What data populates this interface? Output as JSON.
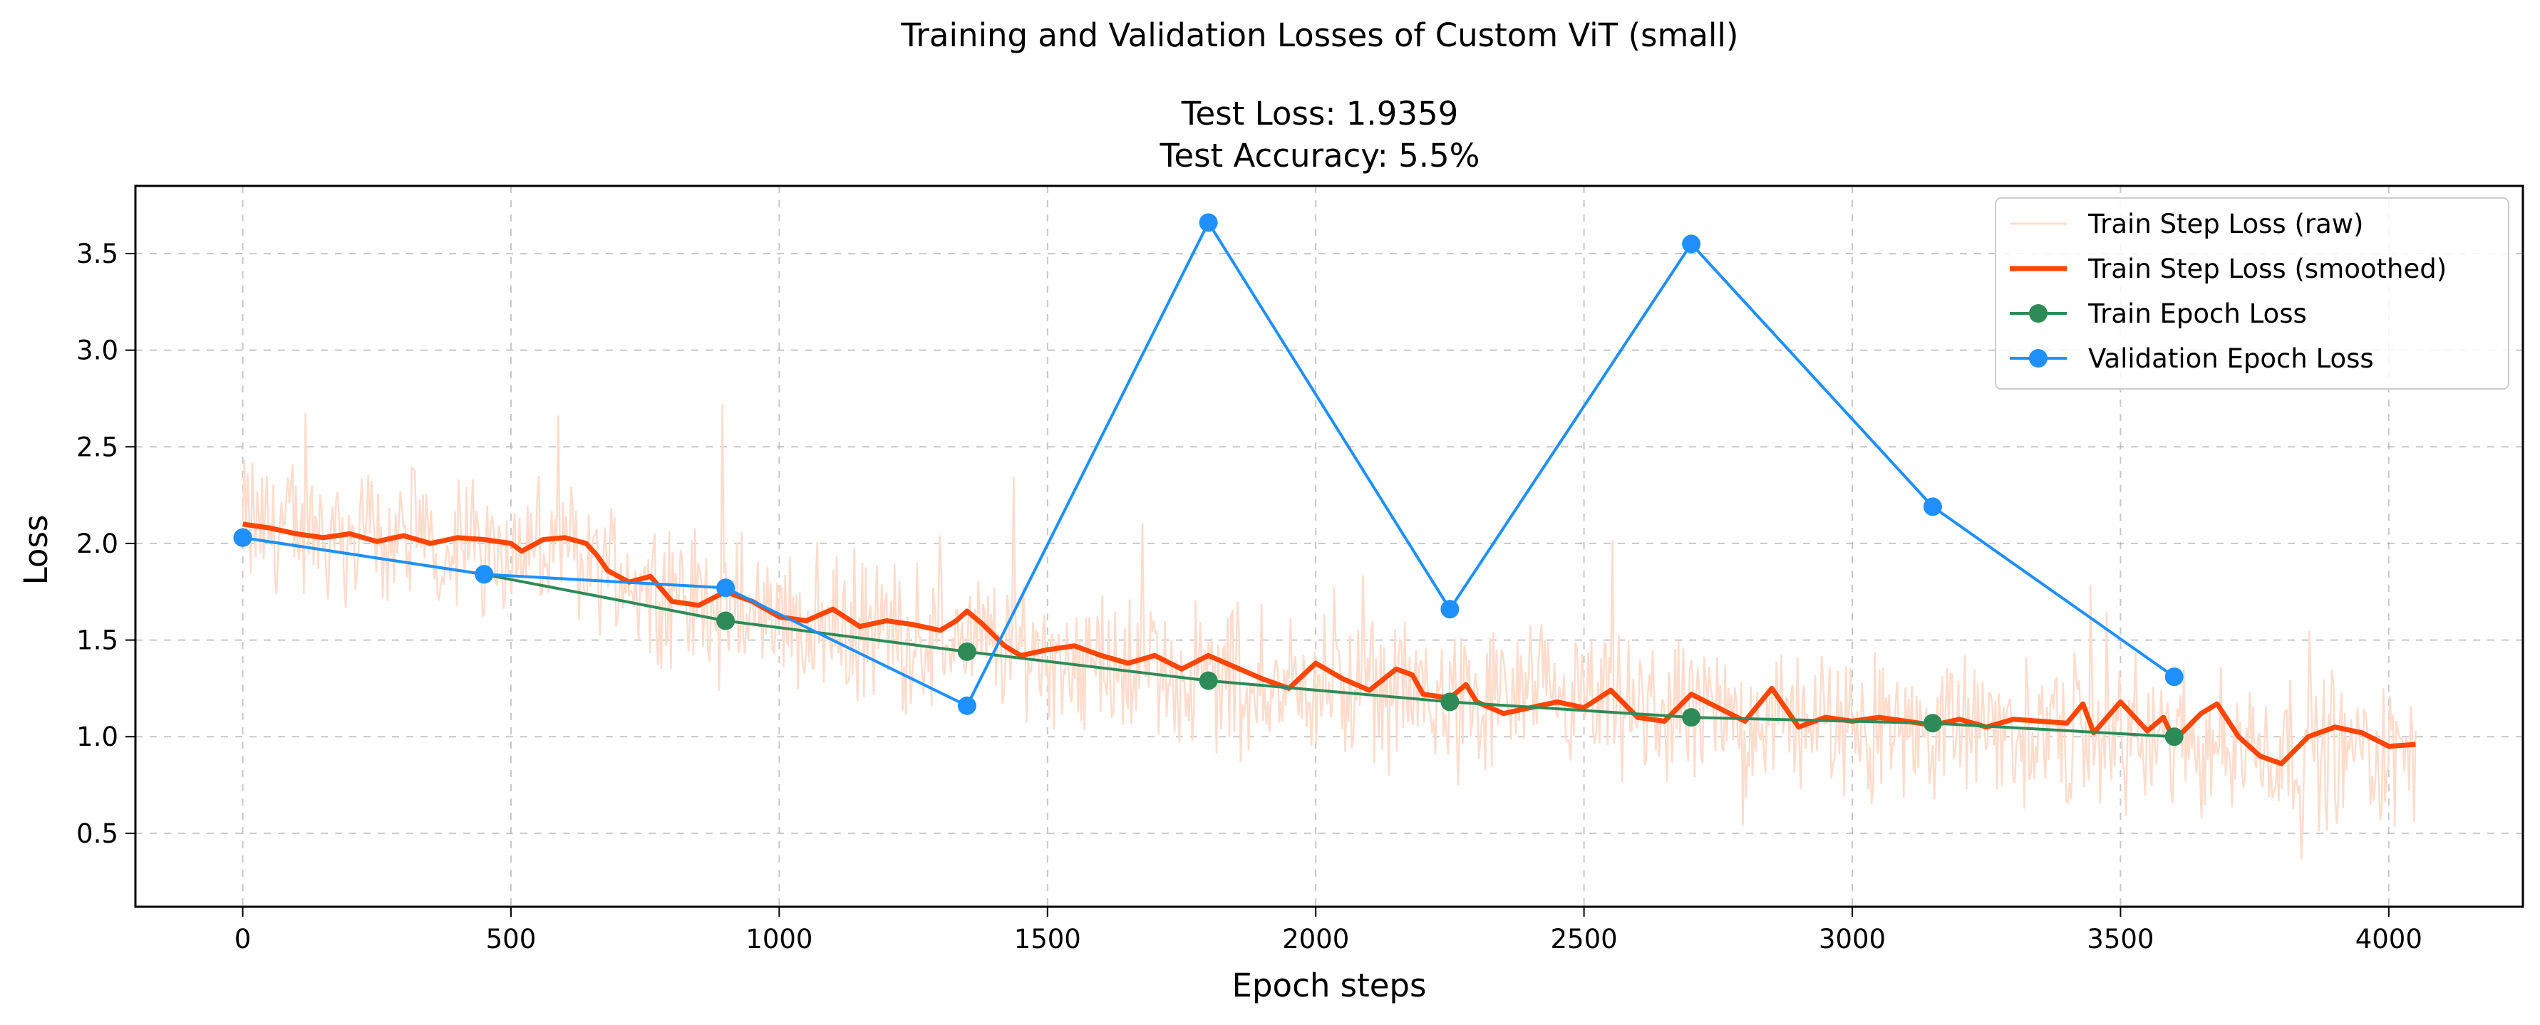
{
  "chart_data": {
    "type": "line",
    "title": "Training and Validation Losses of Custom ViT (small)",
    "subtitle_lines": [
      "Test Loss: 1.9359",
      "Test Accuracy: 5.5%"
    ],
    "xlabel": "Epoch steps",
    "ylabel": "Loss",
    "xlim": [
      -200,
      4250
    ],
    "ylim": [
      0.12,
      3.85
    ],
    "xticks": [
      0,
      500,
      1000,
      1500,
      2000,
      2500,
      3000,
      3500,
      4000
    ],
    "yticks": [
      0.5,
      1.0,
      1.5,
      2.0,
      2.5,
      3.0,
      3.5
    ],
    "xtick_labels": [
      "0",
      "500",
      "1000",
      "1500",
      "2000",
      "2500",
      "3000",
      "3500",
      "4000"
    ],
    "ytick_labels": [
      "0.5",
      "1.0",
      "1.5",
      "2.0",
      "2.5",
      "3.0",
      "3.5"
    ],
    "grid": true,
    "legend_position": "top-right",
    "series": [
      {
        "name": "Train Step Loss (raw)",
        "color": "#ffdccc",
        "style": "noisy-line",
        "x_range": [
          0,
          4050
        ],
        "points_estimated": [
          [
            0,
            2.1
          ],
          [
            600,
            1.95
          ],
          [
            900,
            1.65
          ],
          [
            1350,
            1.5
          ],
          [
            1800,
            1.3
          ],
          [
            2250,
            1.2
          ],
          [
            2700,
            1.1
          ],
          [
            3150,
            1.05
          ],
          [
            3600,
            0.98
          ],
          [
            4050,
            0.9
          ]
        ]
      },
      {
        "name": "Train Step Loss (smoothed)",
        "color": "#ff4500",
        "style": "thick-line",
        "points": [
          [
            0,
            2.1
          ],
          [
            50,
            2.08
          ],
          [
            100,
            2.05
          ],
          [
            150,
            2.03
          ],
          [
            200,
            2.05
          ],
          [
            250,
            2.01
          ],
          [
            300,
            2.04
          ],
          [
            350,
            2.0
          ],
          [
            400,
            2.03
          ],
          [
            450,
            2.02
          ],
          [
            500,
            2.0
          ],
          [
            520,
            1.96
          ],
          [
            560,
            2.02
          ],
          [
            600,
            2.03
          ],
          [
            640,
            2.0
          ],
          [
            660,
            1.94
          ],
          [
            680,
            1.86
          ],
          [
            720,
            1.8
          ],
          [
            760,
            1.83
          ],
          [
            800,
            1.7
          ],
          [
            850,
            1.68
          ],
          [
            900,
            1.75
          ],
          [
            950,
            1.7
          ],
          [
            1000,
            1.62
          ],
          [
            1050,
            1.6
          ],
          [
            1100,
            1.66
          ],
          [
            1150,
            1.57
          ],
          [
            1200,
            1.6
          ],
          [
            1250,
            1.58
          ],
          [
            1300,
            1.55
          ],
          [
            1330,
            1.6
          ],
          [
            1350,
            1.65
          ],
          [
            1380,
            1.58
          ],
          [
            1420,
            1.47
          ],
          [
            1450,
            1.42
          ],
          [
            1500,
            1.45
          ],
          [
            1550,
            1.47
          ],
          [
            1600,
            1.42
          ],
          [
            1650,
            1.38
          ],
          [
            1700,
            1.42
          ],
          [
            1750,
            1.35
          ],
          [
            1800,
            1.42
          ],
          [
            1850,
            1.36
          ],
          [
            1900,
            1.3
          ],
          [
            1950,
            1.25
          ],
          [
            2000,
            1.38
          ],
          [
            2050,
            1.3
          ],
          [
            2100,
            1.24
          ],
          [
            2150,
            1.35
          ],
          [
            2180,
            1.32
          ],
          [
            2200,
            1.22
          ],
          [
            2250,
            1.2
          ],
          [
            2280,
            1.27
          ],
          [
            2300,
            1.18
          ],
          [
            2350,
            1.12
          ],
          [
            2400,
            1.15
          ],
          [
            2450,
            1.18
          ],
          [
            2500,
            1.15
          ],
          [
            2550,
            1.24
          ],
          [
            2600,
            1.1
          ],
          [
            2650,
            1.08
          ],
          [
            2700,
            1.22
          ],
          [
            2750,
            1.15
          ],
          [
            2800,
            1.08
          ],
          [
            2850,
            1.25
          ],
          [
            2900,
            1.05
          ],
          [
            2950,
            1.1
          ],
          [
            3000,
            1.08
          ],
          [
            3050,
            1.1
          ],
          [
            3100,
            1.08
          ],
          [
            3150,
            1.06
          ],
          [
            3200,
            1.09
          ],
          [
            3250,
            1.05
          ],
          [
            3300,
            1.09
          ],
          [
            3350,
            1.08
          ],
          [
            3400,
            1.07
          ],
          [
            3430,
            1.17
          ],
          [
            3450,
            1.02
          ],
          [
            3500,
            1.18
          ],
          [
            3550,
            1.03
          ],
          [
            3580,
            1.1
          ],
          [
            3600,
            0.98
          ],
          [
            3650,
            1.12
          ],
          [
            3680,
            1.17
          ],
          [
            3720,
            1.0
          ],
          [
            3760,
            0.9
          ],
          [
            3800,
            0.86
          ],
          [
            3850,
            1.0
          ],
          [
            3900,
            1.05
          ],
          [
            3950,
            1.02
          ],
          [
            4000,
            0.95
          ],
          [
            4050,
            0.96
          ]
        ]
      },
      {
        "name": "Train Epoch Loss",
        "color": "#2e8b57",
        "style": "line-marker",
        "points": [
          [
            0,
            2.03
          ],
          [
            450,
            1.84
          ],
          [
            900,
            1.6
          ],
          [
            1350,
            1.44
          ],
          [
            1800,
            1.29
          ],
          [
            2250,
            1.18
          ],
          [
            2700,
            1.1
          ],
          [
            3150,
            1.07
          ],
          [
            3600,
            1.0
          ]
        ]
      },
      {
        "name": "Validation Epoch Loss",
        "color": "#1e90ff",
        "style": "line-marker",
        "points": [
          [
            0,
            2.03
          ],
          [
            450,
            1.84
          ],
          [
            900,
            1.77
          ],
          [
            1350,
            1.16
          ],
          [
            1800,
            3.66
          ],
          [
            2250,
            1.66
          ],
          [
            2700,
            3.55
          ],
          [
            3150,
            2.19
          ],
          [
            3600,
            1.31
          ]
        ]
      }
    ]
  }
}
